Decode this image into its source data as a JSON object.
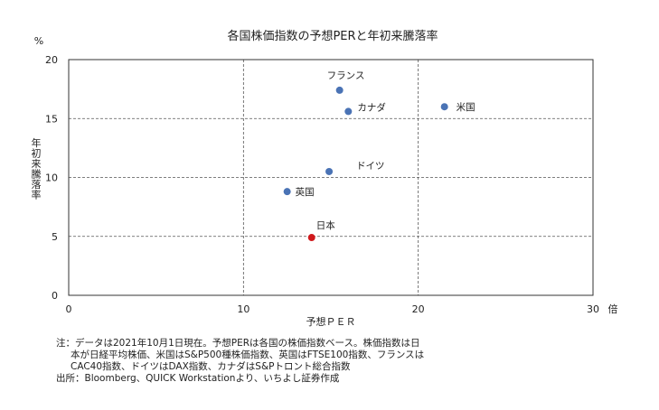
{
  "chart_data": {
    "type": "scatter",
    "title": "各国株価指数の予想PERと年初来騰落率",
    "xlabel": "予想ＰＥＲ",
    "x_unit": "倍",
    "ylabel": "年初来騰落率",
    "y_unit": "%",
    "xlim": [
      0,
      30
    ],
    "ylim": [
      0,
      20
    ],
    "x_ticks": [
      0,
      10,
      20,
      30
    ],
    "y_ticks": [
      0,
      5,
      10,
      15,
      20
    ],
    "grid": "dashed",
    "points": [
      {
        "label": "フランス",
        "x": 15.5,
        "y": 17.4,
        "color": "#4a73b5"
      },
      {
        "label": "カナダ",
        "x": 16.0,
        "y": 15.6,
        "color": "#4a73b5"
      },
      {
        "label": "米国",
        "x": 21.5,
        "y": 16.0,
        "color": "#4a73b5"
      },
      {
        "label": "ドイツ",
        "x": 14.9,
        "y": 10.5,
        "color": "#4a73b5"
      },
      {
        "label": "英国",
        "x": 12.5,
        "y": 8.8,
        "color": "#4a73b5"
      },
      {
        "label": "日本",
        "x": 13.9,
        "y": 4.9,
        "color": "#d0191c"
      }
    ]
  },
  "notes": {
    "line1": "注：データは2021年10月1日現在。予想PERは各国の株価指数ベース。株価指数は日",
    "line2": "本が日経平均株価、米国はS&P500種株価指数、英国はFTSE100指数、フランスは",
    "line3": "CAC40指数、ドイツはDAX指数、カナダはS&Pトロント総合指数",
    "source": "出所：Bloomberg、QUICK Workstationより、いちよし証券作成"
  }
}
